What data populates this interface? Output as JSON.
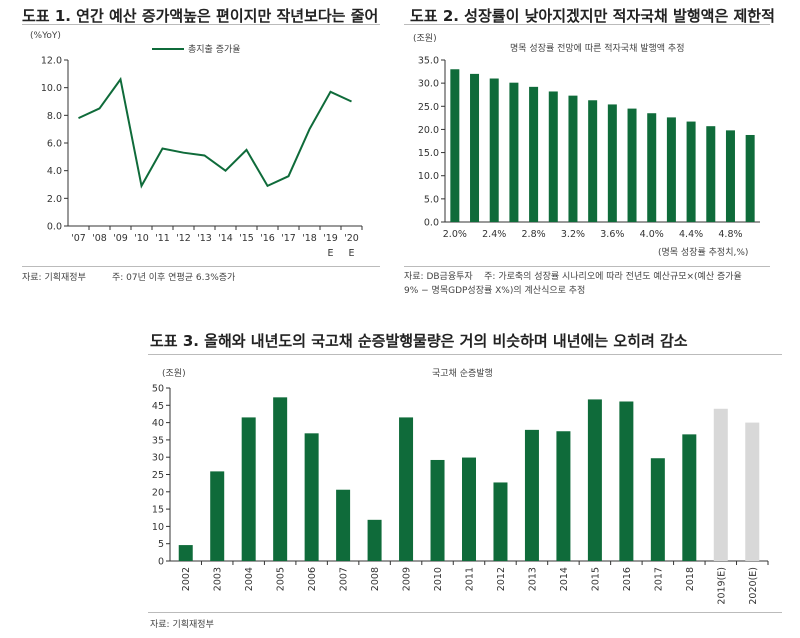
{
  "colors": {
    "green": "#0f6b3a",
    "gray": "#d8d8d8"
  },
  "chart_data": [
    {
      "type": "line",
      "title": "도표 1. 연간 예산 증가액높은 편이지만 작년보다는 줄어",
      "ylabel": "(%YoY)",
      "legend": "총지출 증가율",
      "legend_position": "top-center",
      "categories": [
        "'07",
        "'08",
        "'09",
        "'10",
        "'11",
        "'12",
        "'13",
        "'14",
        "'15",
        "'16",
        "'17",
        "'18",
        "'19",
        "'20"
      ],
      "category_sublabels": [
        "",
        "",
        "",
        "",
        "",
        "",
        "",
        "",
        "",
        "",
        "",
        "",
        "E",
        "E"
      ],
      "values": [
        7.8,
        8.5,
        10.6,
        2.9,
        5.6,
        5.3,
        5.1,
        4.0,
        5.5,
        2.9,
        3.6,
        7.0,
        9.7,
        9.0
      ],
      "ylim": [
        0,
        12
      ],
      "yticks": [
        "0.0",
        "2.0",
        "4.0",
        "6.0",
        "8.0",
        "10.0",
        "12.0"
      ],
      "grid": false,
      "source": "자료: 기획재정부",
      "note": "주: 07년 이후 연평균 6.3%증가"
    },
    {
      "type": "bar",
      "title": "도표 2. 성장률이 낮아지겠지만 적자국채 발행액은 제한적",
      "subtitle": "명목 성장률 전망에 따른 적자국채 발행액 추정",
      "ylabel": "(조원)",
      "xlabel": "(명목 성장률 추정치,%)",
      "categories": [
        "2.0%",
        "2.2%",
        "2.4%",
        "2.6%",
        "2.8%",
        "3.0%",
        "3.2%",
        "3.4%",
        "3.6%",
        "3.8%",
        "4.0%",
        "4.2%",
        "4.4%",
        "4.6%",
        "4.8%",
        "5.0%"
      ],
      "xtick_labels": [
        "2.0%",
        "2.4%",
        "2.8%",
        "3.2%",
        "3.6%",
        "4.0%",
        "4.4%",
        "4.8%"
      ],
      "values": [
        33.0,
        32.0,
        31.0,
        30.1,
        29.2,
        28.2,
        27.3,
        26.3,
        25.4,
        24.5,
        23.5,
        22.6,
        21.7,
        20.7,
        19.8,
        18.8
      ],
      "ylim": [
        0,
        35
      ],
      "yticks": [
        "0.0",
        "5.0",
        "10.0",
        "15.0",
        "20.0",
        "25.0",
        "30.0",
        "35.0"
      ],
      "grid": false,
      "source": "자료: DB금융투자",
      "note": "주: 가로축의 성장률 시나리오에 따라 전년도 예산규모×(예산 증가율 9% − 명목GDP성장률 X%)의 계산식으로 추정"
    },
    {
      "type": "bar",
      "title": "도표 3. 올해와 내년도의 국고채 순증발행물량은 거의 비슷하며 내년에는 오히려 감소",
      "subtitle": "국고채 순증발행",
      "ylabel": "(조원)",
      "categories": [
        "2002",
        "2003",
        "2004",
        "2005",
        "2006",
        "2007",
        "2008",
        "2009",
        "2010",
        "2011",
        "2012",
        "2013",
        "2014",
        "2015",
        "2016",
        "2017",
        "2018",
        "2019(E)",
        "2020(E)"
      ],
      "values": [
        4.6,
        25.9,
        41.5,
        47.3,
        36.9,
        20.6,
        11.9,
        41.5,
        29.2,
        29.9,
        22.7,
        37.9,
        37.5,
        46.7,
        46.1,
        29.7,
        36.6,
        44.0,
        40.0
      ],
      "estimate": [
        false,
        false,
        false,
        false,
        false,
        false,
        false,
        false,
        false,
        false,
        false,
        false,
        false,
        false,
        false,
        false,
        false,
        true,
        true
      ],
      "ylim": [
        0,
        50
      ],
      "yticks": [
        "0",
        "5",
        "10",
        "15",
        "20",
        "25",
        "30",
        "35",
        "40",
        "45",
        "50"
      ],
      "grid": false,
      "source": "자료: 기획재정부"
    }
  ]
}
